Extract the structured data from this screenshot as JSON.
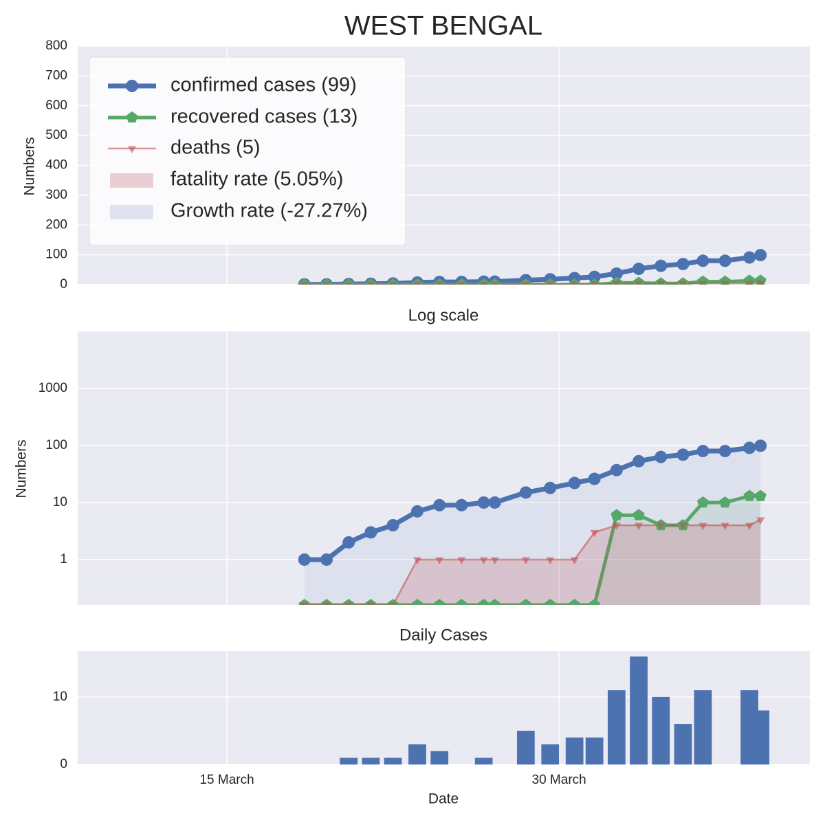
{
  "chart_data": [
    {
      "type": "line",
      "title": "WEST BENGAL",
      "ylabel": "Numbers",
      "x": [
        18.5,
        19.5,
        20.5,
        21.5,
        22.5,
        23.6,
        24.6,
        25.6,
        26.6,
        27.1,
        28.5,
        29.6,
        30.7,
        31.6,
        32.6,
        33.6,
        34.6,
        35.6,
        36.5,
        37.5,
        38.6,
        39.1
      ],
      "xlim": [
        8.26,
        41.33
      ],
      "ylim": [
        0,
        800
      ],
      "yticks": [
        0,
        100,
        200,
        300,
        400,
        500,
        600,
        700,
        800
      ],
      "grid": true,
      "fill": false,
      "series": [
        {
          "name": "confirmed cases (99)",
          "color": "#4c72b0",
          "marker": "circle",
          "values": [
            1,
            1,
            2,
            3,
            4,
            7,
            9,
            9,
            10,
            10,
            15,
            18,
            22,
            26,
            37,
            53,
            63,
            69,
            80,
            80,
            91,
            99
          ]
        },
        {
          "name": "recovered cases (13)",
          "color": "#55a868",
          "marker": "pentagon",
          "values": [
            0,
            0,
            0,
            0,
            0,
            0,
            0,
            0,
            0,
            0,
            0,
            0,
            0,
            0,
            6,
            6,
            4,
            4,
            10,
            10,
            13,
            13
          ]
        },
        {
          "name": "deaths (5)",
          "color": "#c44e52",
          "marker": "triangle",
          "values": [
            0,
            0,
            0,
            0,
            0,
            1,
            1,
            1,
            1,
            1,
            1,
            1,
            1,
            3,
            4,
            4,
            4,
            4,
            4,
            4,
            4,
            5
          ]
        }
      ],
      "legend_patches": [
        {
          "label": "fatality rate (5.05%)",
          "color": "#e9cfd4"
        },
        {
          "label": "Growth rate (-27.27%)",
          "color": "#dfe3f0"
        }
      ],
      "legend": "upper left"
    },
    {
      "type": "line",
      "title": "Log scale",
      "ylabel": "Numbers",
      "log": true,
      "x": [
        18.5,
        19.5,
        20.5,
        21.5,
        22.5,
        23.6,
        24.6,
        25.6,
        26.6,
        27.1,
        28.5,
        29.6,
        30.7,
        31.6,
        32.6,
        33.6,
        34.6,
        35.6,
        36.5,
        37.5,
        38.6,
        39.1
      ],
      "xlim": [
        8.26,
        41.33
      ],
      "ylim": [
        0.16,
        10000
      ],
      "yticks": [
        1,
        10,
        100,
        1000
      ],
      "grid": true,
      "fill": true,
      "series": [
        {
          "color": "#4c72b0",
          "marker": "circle",
          "values": [
            1,
            1,
            2,
            3,
            4,
            7,
            9,
            9,
            10,
            10,
            15,
            18,
            22,
            26,
            37,
            53,
            63,
            69,
            80,
            80,
            91,
            99
          ]
        },
        {
          "color": "#55a868",
          "marker": "pentagon",
          "values": [
            0,
            0,
            0,
            0,
            0,
            0,
            0,
            0,
            0,
            0,
            0,
            0,
            0,
            0,
            6,
            6,
            4,
            4,
            10,
            10,
            13,
            13
          ]
        },
        {
          "color": "#c44e52",
          "marker": "triangle",
          "values": [
            0,
            0,
            0,
            0,
            0,
            1,
            1,
            1,
            1,
            1,
            1,
            1,
            1,
            3,
            4,
            4,
            4,
            4,
            4,
            4,
            4,
            5
          ]
        }
      ]
    },
    {
      "type": "bar",
      "title": "Daily Cases",
      "xlabel": "Date",
      "x": [
        18.5,
        19.5,
        20.5,
        21.5,
        22.5,
        23.6,
        24.6,
        25.6,
        26.6,
        27.1,
        28.5,
        29.6,
        30.7,
        31.6,
        32.6,
        33.6,
        34.6,
        35.6,
        36.5,
        37.5,
        38.6,
        39.1
      ],
      "values": [
        0,
        0,
        1,
        1,
        1,
        3,
        2,
        0,
        1,
        0,
        5,
        3,
        4,
        4,
        11,
        16,
        10,
        6,
        11,
        0,
        11,
        8
      ],
      "color": "#4c72b0",
      "xlim": [
        8.26,
        41.33
      ],
      "ylim": [
        0,
        16.8
      ],
      "yticks": [
        0,
        10
      ],
      "grid": true,
      "xticks": [
        {
          "value": 15,
          "label": "15 March"
        },
        {
          "value": 30,
          "label": "30 March"
        }
      ]
    }
  ]
}
